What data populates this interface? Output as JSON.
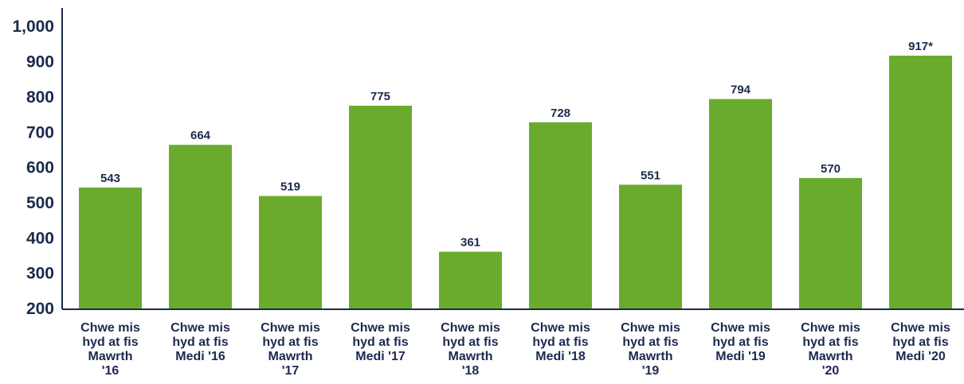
{
  "chart_data": {
    "type": "bar",
    "categories": [
      [
        "Chwe mis",
        "hyd at fis",
        "Mawrth",
        "'16"
      ],
      [
        "Chwe mis",
        "hyd at fis",
        "Medi '16"
      ],
      [
        "Chwe mis",
        "hyd at fis",
        "Mawrth",
        "'17"
      ],
      [
        "Chwe mis",
        "hyd at fis",
        "Medi '17"
      ],
      [
        "Chwe mis",
        "hyd at fis",
        "Mawrth",
        "'18"
      ],
      [
        "Chwe mis",
        "hyd at fis",
        "Medi '18"
      ],
      [
        "Chwe mis",
        "hyd at fis",
        "Mawrth",
        "'19"
      ],
      [
        "Chwe mis",
        "hyd at fis",
        "Medi '19"
      ],
      [
        "Chwe mis",
        "hyd at fis",
        "Mawrth",
        "'20"
      ],
      [
        "Chwe mis",
        "hyd at fis",
        "Medi '20"
      ]
    ],
    "values": [
      543,
      664,
      519,
      775,
      361,
      728,
      551,
      794,
      570,
      917
    ],
    "data_labels": [
      "543",
      "664",
      "519",
      "775",
      "361",
      "728",
      "551",
      "794",
      "570",
      "917*"
    ],
    "ylim": [
      200,
      1000
    ],
    "yticks": [
      200,
      300,
      400,
      500,
      600,
      700,
      800,
      900,
      1000
    ],
    "ytick_labels": [
      "200",
      "300",
      "400",
      "500",
      "600",
      "700",
      "800",
      "900",
      "1,000"
    ],
    "grid": false,
    "legend": "none",
    "colors": {
      "bar": "#6aab2e",
      "text": "#1b2a4e",
      "axis": "#1b2a4e"
    }
  }
}
